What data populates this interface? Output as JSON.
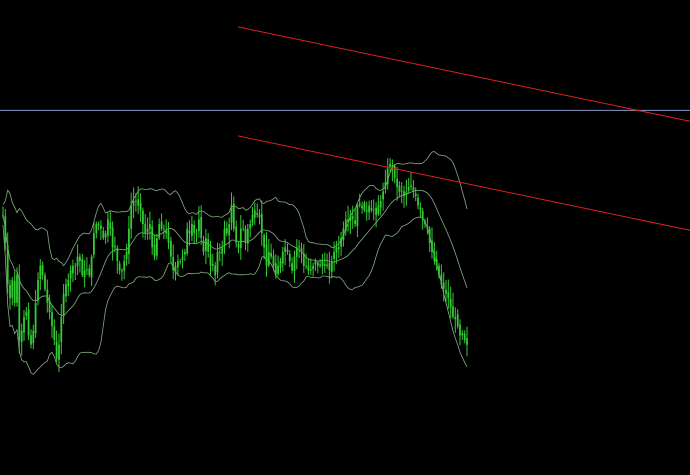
{
  "chart_data": {
    "type": "candlestick",
    "title": "",
    "xlabel": "",
    "ylabel": "",
    "grid": false,
    "legend": "none",
    "background_color": "#000000",
    "candle_color": "#33cc33",
    "band_color": "#9acd9a",
    "channel_color": "#e01f1f",
    "horizontal_line_color": "#8c96c8",
    "y_axis": {
      "min": 0,
      "max": 100,
      "direction": "up"
    },
    "horizontal_level": 77.5,
    "close": [
      55,
      49,
      40,
      37,
      41,
      36,
      42,
      28,
      30,
      33,
      34,
      29,
      27,
      30,
      36,
      41,
      44,
      42,
      39,
      36,
      34,
      31,
      28,
      24,
      27,
      33,
      38,
      40,
      41,
      43,
      44,
      44,
      46,
      45,
      42,
      43,
      43,
      42,
      46,
      51,
      53,
      53,
      52,
      50,
      51,
      54,
      52,
      48,
      48,
      45,
      43,
      43,
      45,
      47,
      52,
      57,
      58,
      58,
      57,
      56,
      53,
      51,
      52,
      53,
      48,
      46,
      50,
      53,
      52,
      52,
      51,
      49,
      46,
      43,
      44,
      45,
      45,
      46,
      47,
      52,
      51,
      53,
      51,
      51,
      54,
      50,
      47,
      50,
      47,
      44,
      44,
      42,
      47,
      47,
      48,
      52,
      51,
      53,
      57,
      52,
      49,
      48,
      52,
      52,
      49,
      52,
      53,
      55,
      56,
      55,
      55,
      51,
      48,
      44,
      47,
      46,
      44,
      42,
      44,
      45,
      47,
      48,
      47,
      45,
      43,
      46,
      48,
      48,
      47,
      44,
      44,
      43,
      43,
      44,
      45,
      44,
      44,
      45,
      44,
      44,
      43,
      45,
      47,
      48,
      48,
      50,
      52,
      54,
      54,
      55,
      54,
      53,
      57,
      57,
      57,
      56,
      56,
      57,
      56,
      56,
      55,
      57,
      58,
      60,
      62,
      65,
      66,
      65,
      63,
      61,
      60,
      60,
      59,
      60,
      61,
      61,
      60,
      59,
      57,
      56,
      54,
      53,
      52,
      49,
      47,
      45,
      44,
      42,
      40,
      39,
      38,
      37,
      35,
      33,
      33,
      31,
      29,
      29,
      28,
      27
    ]
  }
}
